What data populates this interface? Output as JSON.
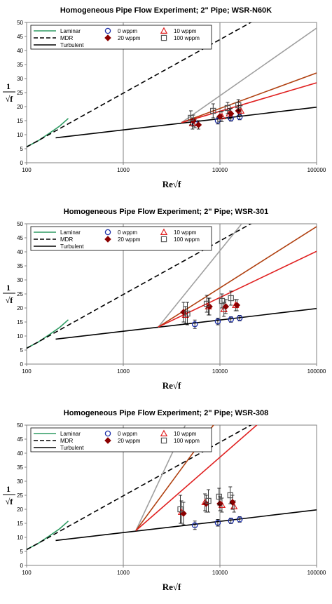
{
  "chart_data": [
    {
      "type": "line",
      "title": "Homogeneous Pipe Flow Experiment; 2\" Pipe; WSR-N60K",
      "xlabel": "Re√f",
      "ylabel_numerator": "1",
      "ylabel_denominator": "√f",
      "xscale": "log",
      "xlim": [
        100,
        100000
      ],
      "ylim": [
        0,
        50
      ],
      "x_ticks": [
        "100",
        "1000",
        "10000",
        "100000"
      ],
      "y_ticks": [
        "0",
        "5",
        "10",
        "15",
        "20",
        "25",
        "30",
        "35",
        "40",
        "45",
        "50"
      ],
      "grid": "vertical lines at decades",
      "legend_position": "top-left",
      "legend": [
        {
          "label": "Laminar",
          "kind": "line",
          "color": "#2e9b62",
          "dash": "solid"
        },
        {
          "label": "0 wppm",
          "kind": "marker",
          "marker": "circle",
          "color": "#1c2fa8"
        },
        {
          "label": "10 wppm",
          "kind": "marker",
          "marker": "triangle",
          "color": "#e02020"
        },
        {
          "label": "MDR",
          "kind": "line",
          "color": "#000000",
          "dash": "dashed"
        },
        {
          "label": "20 wppm",
          "kind": "marker",
          "marker": "diamond",
          "color": "#8b0000"
        },
        {
          "label": "100 wppm",
          "kind": "marker",
          "marker": "square",
          "color": "#555555"
        },
        {
          "label": "Turbulent",
          "kind": "line",
          "color": "#000000",
          "dash": "solid"
        }
      ],
      "series": [
        {
          "name": "Laminar",
          "kind": "line",
          "color": "#2e9b62",
          "dash": "solid",
          "x": [
            100,
            130,
            170,
            220,
            270
          ],
          "y": [
            5.7,
            7.7,
            10.4,
            13.1,
            15.8
          ]
        },
        {
          "name": "MDR",
          "kind": "line",
          "color": "#000000",
          "dash": "dashed",
          "x": [
            100,
            1000,
            10000,
            40000
          ],
          "y": [
            5.6,
            24.8,
            43.9,
            55.4
          ]
        },
        {
          "name": "Turbulent",
          "kind": "line",
          "color": "#000000",
          "dash": "solid",
          "x": [
            200,
            1000,
            10000,
            100000
          ],
          "y": [
            8.9,
            11.7,
            15.7,
            19.8
          ]
        },
        {
          "kind": "line",
          "color": "#a0a0a0",
          "dash": "solid",
          "x": [
            4000,
            100000
          ],
          "y": [
            14.3,
            48.0
          ]
        },
        {
          "kind": "line",
          "color": "#b04010",
          "dash": "solid",
          "x": [
            4000,
            100000
          ],
          "y": [
            14.3,
            32.0
          ]
        },
        {
          "kind": "line",
          "color": "#e02020",
          "dash": "solid",
          "x": [
            4000,
            100000
          ],
          "y": [
            14.3,
            28.5
          ]
        },
        {
          "name": "0 wppm",
          "kind": "marker",
          "marker": "circle",
          "color": "#1c2fa8",
          "x": [
            5500,
            9500,
            13000,
            16000
          ],
          "y": [
            14.0,
            15.0,
            15.8,
            16.3
          ],
          "err": [
            1.5,
            1.2,
            1.0,
            1.0
          ]
        },
        {
          "name": "10 wppm",
          "kind": "marker",
          "marker": "triangle",
          "color": "#e02020",
          "x": [
            5200,
            10500,
            12500,
            16500
          ],
          "y": [
            14.0,
            16.5,
            17.5,
            18.5
          ],
          "err": [
            2.0,
            1.8,
            1.8,
            1.8
          ]
        },
        {
          "name": "20 wppm",
          "kind": "marker",
          "marker": "diamond",
          "color": "#8b0000",
          "x": [
            5300,
            6000,
            10000,
            13000,
            15500
          ],
          "y": [
            15.0,
            13.5,
            16.5,
            17.5,
            18.5
          ],
          "err": [
            2.0,
            1.5,
            1.8,
            1.8,
            1.8
          ]
        },
        {
          "name": "100 wppm",
          "kind": "marker",
          "marker": "square",
          "color": "#555555",
          "x": [
            5000,
            8500,
            12000,
            15500
          ],
          "y": [
            16.0,
            18.5,
            19.5,
            20.5
          ],
          "err": [
            2.5,
            2.5,
            2.0,
            2.0
          ]
        }
      ]
    },
    {
      "type": "line",
      "title": "Homogeneous Pipe Flow Experiment; 2\" Pipe; WSR-301",
      "xlabel": "Re√f",
      "ylabel_numerator": "1",
      "ylabel_denominator": "√f",
      "xscale": "log",
      "xlim": [
        100,
        100000
      ],
      "ylim": [
        0,
        50
      ],
      "x_ticks": [
        "100",
        "1000",
        "10000",
        "100000"
      ],
      "y_ticks": [
        "0",
        "5",
        "10",
        "15",
        "20",
        "25",
        "30",
        "35",
        "40",
        "45",
        "50"
      ],
      "grid": "vertical lines at decades",
      "legend_position": "top-left",
      "legend": [
        {
          "label": "Laminar",
          "kind": "line",
          "color": "#2e9b62",
          "dash": "solid"
        },
        {
          "label": "0 wppm",
          "kind": "marker",
          "marker": "circle",
          "color": "#1c2fa8"
        },
        {
          "label": "10 wppm",
          "kind": "marker",
          "marker": "triangle",
          "color": "#e02020"
        },
        {
          "label": "MDR",
          "kind": "line",
          "color": "#000000",
          "dash": "dashed"
        },
        {
          "label": "20 wppm",
          "kind": "marker",
          "marker": "diamond",
          "color": "#8b0000"
        },
        {
          "label": "100 wppm",
          "kind": "marker",
          "marker": "square",
          "color": "#555555"
        },
        {
          "label": "Turbulent",
          "kind": "line",
          "color": "#000000",
          "dash": "solid"
        }
      ],
      "series": [
        {
          "name": "Laminar",
          "kind": "line",
          "color": "#2e9b62",
          "dash": "solid",
          "x": [
            100,
            130,
            170,
            220,
            270
          ],
          "y": [
            5.7,
            7.7,
            10.4,
            13.1,
            15.8
          ]
        },
        {
          "name": "MDR",
          "kind": "line",
          "color": "#000000",
          "dash": "dashed",
          "x": [
            100,
            1000,
            10000,
            40000
          ],
          "y": [
            5.6,
            24.8,
            43.9,
            55.4
          ]
        },
        {
          "name": "Turbulent",
          "kind": "line",
          "color": "#000000",
          "dash": "solid",
          "x": [
            200,
            1000,
            10000,
            100000
          ],
          "y": [
            8.9,
            11.7,
            15.7,
            19.8
          ]
        },
        {
          "kind": "line",
          "color": "#a0a0a0",
          "dash": "solid",
          "x": [
            2300,
            22000
          ],
          "y": [
            13.2,
            55.0
          ]
        },
        {
          "kind": "line",
          "color": "#b04010",
          "dash": "solid",
          "x": [
            2300,
            100000
          ],
          "y": [
            13.2,
            49.0
          ]
        },
        {
          "kind": "line",
          "color": "#e02020",
          "dash": "solid",
          "x": [
            2300,
            100000
          ],
          "y": [
            13.2,
            40.2
          ]
        },
        {
          "name": "0 wppm",
          "kind": "marker",
          "marker": "circle",
          "color": "#1c2fa8",
          "x": [
            5500,
            9500,
            13000,
            16000
          ],
          "y": [
            14.2,
            15.2,
            15.9,
            16.4
          ],
          "err": [
            1.5,
            1.2,
            1.0,
            1.0
          ]
        },
        {
          "name": "10 wppm",
          "kind": "marker",
          "marker": "triangle",
          "color": "#e02020",
          "x": [
            4400,
            7600,
            11000,
            14500
          ],
          "y": [
            17.5,
            20.5,
            19.5,
            21.0
          ],
          "err": [
            3.0,
            3.0,
            2.5,
            2.0
          ]
        },
        {
          "name": "20 wppm",
          "kind": "marker",
          "marker": "diamond",
          "color": "#8b0000",
          "x": [
            4200,
            7800,
            11500,
            15000
          ],
          "y": [
            18.5,
            20.5,
            20.5,
            21.0
          ],
          "err": [
            3.5,
            3.0,
            2.5,
            2.0
          ]
        },
        {
          "name": "100 wppm",
          "kind": "marker",
          "marker": "square",
          "color": "#555555",
          "x": [
            4600,
            7300,
            10500,
            13000
          ],
          "y": [
            18.0,
            21.5,
            22.5,
            23.5
          ],
          "err": [
            4.0,
            3.0,
            2.5,
            2.5
          ]
        }
      ]
    },
    {
      "type": "line",
      "title": "Homogeneous Pipe Flow Experiment; 2\" Pipe; WSR-308",
      "xlabel": "Re√f",
      "ylabel_numerator": "1",
      "ylabel_denominator": "√f",
      "xscale": "log",
      "xlim": [
        100,
        100000
      ],
      "ylim": [
        0,
        50
      ],
      "x_ticks": [
        "100",
        "1000",
        "10000",
        "100000"
      ],
      "y_ticks": [
        "0",
        "5",
        "10",
        "15",
        "20",
        "25",
        "30",
        "35",
        "40",
        "45",
        "50"
      ],
      "grid": "vertical lines at decades",
      "legend_position": "top-left",
      "legend": [
        {
          "label": "Laminar",
          "kind": "line",
          "color": "#2e9b62",
          "dash": "solid"
        },
        {
          "label": "0 wppm",
          "kind": "marker",
          "marker": "circle",
          "color": "#1c2fa8"
        },
        {
          "label": "10 wppm",
          "kind": "marker",
          "marker": "triangle",
          "color": "#e02020"
        },
        {
          "label": "MDR",
          "kind": "line",
          "color": "#000000",
          "dash": "dashed"
        },
        {
          "label": "20 wppm",
          "kind": "marker",
          "marker": "diamond",
          "color": "#8b0000"
        },
        {
          "label": "100 wppm",
          "kind": "marker",
          "marker": "square",
          "color": "#555555"
        },
        {
          "label": "Turbulent",
          "kind": "line",
          "color": "#000000",
          "dash": "solid"
        }
      ],
      "series": [
        {
          "name": "Laminar",
          "kind": "line",
          "color": "#2e9b62",
          "dash": "solid",
          "x": [
            100,
            130,
            170,
            220,
            270
          ],
          "y": [
            5.7,
            7.7,
            10.4,
            13.1,
            15.8
          ]
        },
        {
          "name": "MDR",
          "kind": "line",
          "color": "#000000",
          "dash": "dashed",
          "x": [
            100,
            1000,
            10000,
            40000
          ],
          "y": [
            5.6,
            24.8,
            43.9,
            55.4
          ]
        },
        {
          "name": "Turbulent",
          "kind": "line",
          "color": "#000000",
          "dash": "solid",
          "x": [
            200,
            1000,
            10000,
            100000
          ],
          "y": [
            8.9,
            11.7,
            15.7,
            19.8
          ]
        },
        {
          "kind": "line",
          "color": "#a0a0a0",
          "dash": "solid",
          "x": [
            1350,
            6000
          ],
          "y": [
            12.4,
            60.0
          ]
        },
        {
          "kind": "line",
          "color": "#b04010",
          "dash": "solid",
          "x": [
            1350,
            14000
          ],
          "y": [
            12.4,
            60.0
          ]
        },
        {
          "kind": "line",
          "color": "#e02020",
          "dash": "solid",
          "x": [
            1350,
            28000
          ],
          "y": [
            12.4,
            52.0
          ]
        },
        {
          "name": "0 wppm",
          "kind": "marker",
          "marker": "circle",
          "color": "#1c2fa8",
          "x": [
            5500,
            9500,
            13000,
            16000
          ],
          "y": [
            14.3,
            15.2,
            15.9,
            16.4
          ],
          "err": [
            1.5,
            1.2,
            1.0,
            1.0
          ]
        },
        {
          "name": "10 wppm",
          "kind": "marker",
          "marker": "triangle",
          "color": "#e02020",
          "x": [
            4000,
            7000,
            10500,
            14000
          ],
          "y": [
            19.0,
            22.5,
            21.5,
            21.0
          ],
          "err": [
            4.0,
            3.0,
            2.5,
            2.0
          ]
        },
        {
          "name": "20 wppm",
          "kind": "marker",
          "marker": "diamond",
          "color": "#8b0000",
          "x": [
            4200,
            7200,
            10000,
            13500
          ],
          "y": [
            18.5,
            22.0,
            22.0,
            22.5
          ],
          "err": [
            4.0,
            3.0,
            2.5,
            2.5
          ]
        },
        {
          "name": "100 wppm",
          "kind": "marker",
          "marker": "square",
          "color": "#555555",
          "x": [
            3900,
            7600,
            9800,
            12800
          ],
          "y": [
            20.0,
            23.0,
            24.5,
            25.0
          ],
          "err": [
            5.0,
            4.0,
            3.0,
            3.0
          ]
        }
      ]
    }
  ]
}
